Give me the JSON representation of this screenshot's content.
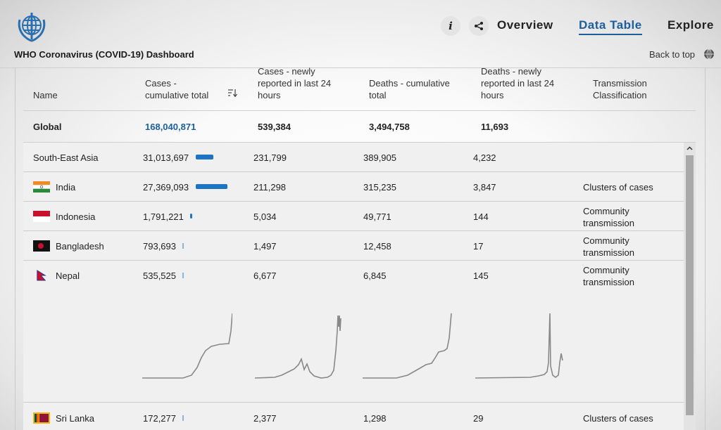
{
  "header": {
    "app_title": "WHO Coronavirus (COVID-19) Dashboard",
    "nav": {
      "overview": "Overview",
      "data_table": "Data Table",
      "explore": "Explore"
    },
    "info_label": "i",
    "back_to_top": "Back to top"
  },
  "columns": {
    "name": "Name",
    "cases_cumulative": "Cases - cumulative total",
    "cases_new": "Cases - newly reported in last 24 hours",
    "deaths_cumulative": "Deaths - cumulative total",
    "deaths_new": "Deaths - newly reported in last 24 hours",
    "transmission": "Transmission Classification"
  },
  "global": {
    "name": "Global",
    "cases": "168,040,871",
    "cases_new": "539,384",
    "deaths": "3,494,758",
    "deaths_new": "11,693"
  },
  "rows": [
    {
      "name": "South-East Asia",
      "cases": "31,013,697",
      "cases_new": "231,799",
      "deaths": "389,905",
      "deaths_new": "4,232",
      "transmission": "",
      "bar_fraction": 0.55
    },
    {
      "name": "India",
      "cases": "27,369,093",
      "cases_new": "211,298",
      "deaths": "315,235",
      "deaths_new": "3,847",
      "transmission": "Clusters of cases",
      "bar_fraction": 1.0
    },
    {
      "name": "Indonesia",
      "cases": "1,791,221",
      "cases_new": "5,034",
      "deaths": "49,771",
      "deaths_new": "144",
      "transmission": "Community transmission",
      "bar_fraction": 0.07
    },
    {
      "name": "Bangladesh",
      "cases": "793,693",
      "cases_new": "1,497",
      "deaths": "12,458",
      "deaths_new": "17",
      "transmission": "Community transmission",
      "bar_fraction": 0.03
    },
    {
      "name": "Nepal",
      "cases": "535,525",
      "cases_new": "6,677",
      "deaths": "6,845",
      "deaths_new": "145",
      "transmission": "Community transmission",
      "bar_fraction": 0.02
    },
    {
      "name": "Sri Lanka",
      "cases": "172,277",
      "cases_new": "2,377",
      "deaths": "1,298",
      "deaths_new": "29",
      "transmission": "Clusters of cases",
      "bar_fraction": 0.01
    }
  ],
  "colors": {
    "accent": "#1d5f9c",
    "bar": "#1d74c4",
    "sparkline": "#888888"
  },
  "icons": {
    "logo": "who-emblem",
    "info": "info-icon",
    "share": "share-icon",
    "sort": "sort-descending-icon",
    "globe": "globe-icon",
    "scroll_up": "chevron-up-icon"
  }
}
